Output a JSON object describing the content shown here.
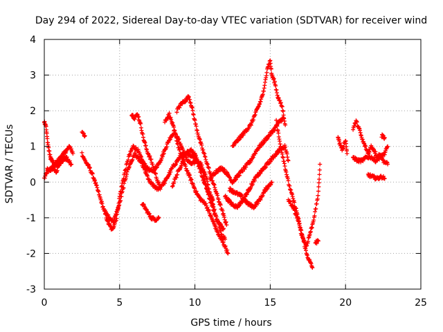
{
  "chart_data": {
    "type": "scatter",
    "title": "Day 294 of 2022, Sidereal Day-to-day VTEC variation (SDTVAR) for receiver wind",
    "xlabel": "GPS time / hours",
    "ylabel": "SDTVAR / TECUs",
    "xlim": [
      0,
      25
    ],
    "ylim": [
      -3,
      4
    ],
    "xticks": [
      0,
      5,
      10,
      15,
      20,
      25
    ],
    "yticks": [
      -3,
      -2,
      -1,
      0,
      1,
      2,
      3,
      4
    ],
    "grid": true,
    "marker": "+",
    "series": [
      {
        "name": "SDTVAR",
        "color": "#ff0000",
        "tracks": [
          [
            [
              0.0,
              0.1
            ],
            [
              0.2,
              0.3
            ],
            [
              0.5,
              0.4
            ],
            [
              0.8,
              0.5
            ],
            [
              1.0,
              0.6
            ],
            [
              1.3,
              0.7
            ],
            [
              1.6,
              0.6
            ],
            [
              1.8,
              0.5
            ]
          ],
          [
            [
              0.0,
              1.7
            ],
            [
              0.1,
              1.6
            ],
            [
              0.2,
              1.2
            ],
            [
              0.3,
              0.9
            ],
            [
              0.4,
              0.7
            ],
            [
              0.5,
              0.6
            ],
            [
              0.7,
              0.5
            ],
            [
              0.9,
              0.6
            ],
            [
              1.1,
              0.7
            ],
            [
              1.3,
              0.8
            ],
            [
              1.5,
              0.9
            ],
            [
              1.7,
              1.0
            ],
            [
              1.9,
              0.8
            ]
          ],
          [
            [
              0.2,
              0.4
            ],
            [
              0.4,
              0.3
            ],
            [
              0.6,
              0.4
            ],
            [
              0.8,
              0.3
            ],
            [
              1.0,
              0.5
            ],
            [
              1.2,
              0.6
            ],
            [
              1.5,
              0.7
            ]
          ],
          [
            [
              2.5,
              1.4
            ],
            [
              2.7,
              1.3
            ]
          ],
          [
            [
              2.5,
              0.8
            ],
            [
              2.7,
              0.6
            ],
            [
              3.0,
              0.4
            ],
            [
              3.3,
              0.1
            ],
            [
              3.6,
              -0.3
            ],
            [
              3.9,
              -0.7
            ],
            [
              4.2,
              -1.1
            ],
            [
              4.5,
              -1.35
            ],
            [
              4.8,
              -1.0
            ],
            [
              5.0,
              -0.4
            ],
            [
              5.3,
              0.2
            ],
            [
              5.6,
              0.7
            ],
            [
              5.9,
              1.0
            ],
            [
              6.2,
              0.9
            ],
            [
              6.5,
              0.6
            ],
            [
              6.8,
              0.4
            ],
            [
              7.1,
              0.3
            ],
            [
              7.4,
              0.4
            ],
            [
              7.7,
              0.6
            ],
            [
              8.0,
              0.9
            ],
            [
              8.3,
              1.2
            ],
            [
              8.6,
              1.4
            ],
            [
              8.9,
              1.2
            ],
            [
              9.2,
              0.9
            ],
            [
              9.5,
              0.6
            ],
            [
              9.8,
              0.5
            ],
            [
              10.1,
              0.6
            ],
            [
              10.4,
              0.5
            ],
            [
              10.7,
              0.2
            ],
            [
              11.0,
              -0.3
            ],
            [
              11.3,
              -0.8
            ],
            [
              11.6,
              -1.2
            ],
            [
              11.8,
              -1.5
            ],
            [
              12.0,
              -1.6
            ]
          ],
          [
            [
              4.0,
              -0.8
            ],
            [
              4.3,
              -1.0
            ],
            [
              4.6,
              -1.1
            ],
            [
              5.0,
              -0.6
            ],
            [
              5.5,
              0.3
            ],
            [
              6.0,
              0.8
            ],
            [
              6.5,
              0.5
            ],
            [
              7.0,
              0.0
            ],
            [
              7.5,
              -0.2
            ],
            [
              8.0,
              0.0
            ],
            [
              8.5,
              0.4
            ],
            [
              9.0,
              0.7
            ],
            [
              9.5,
              0.8
            ],
            [
              10.0,
              0.7
            ],
            [
              10.5,
              0.3
            ],
            [
              11.0,
              -0.5
            ],
            [
              11.5,
              -1.1
            ],
            [
              11.9,
              -1.3
            ]
          ],
          [
            [
              5.8,
              1.9
            ],
            [
              6.0,
              1.8
            ],
            [
              6.2,
              1.9
            ],
            [
              6.4,
              1.6
            ],
            [
              6.6,
              1.2
            ],
            [
              6.8,
              0.9
            ],
            [
              7.1,
              0.6
            ],
            [
              7.4,
              0.2
            ],
            [
              7.7,
              -0.2
            ]
          ],
          [
            [
              6.5,
              -0.6
            ],
            [
              6.8,
              -0.8
            ],
            [
              7.1,
              -1.0
            ],
            [
              7.4,
              -1.05
            ],
            [
              7.6,
              -1.0
            ]
          ],
          [
            [
              8.0,
              1.7
            ],
            [
              8.3,
              1.9
            ],
            [
              8.6,
              1.5
            ],
            [
              8.9,
              1.0
            ],
            [
              9.2,
              0.6
            ],
            [
              9.5,
              0.3
            ],
            [
              9.8,
              0.0
            ],
            [
              10.1,
              -0.3
            ],
            [
              10.4,
              -0.5
            ],
            [
              10.7,
              -0.6
            ],
            [
              11.0,
              -0.9
            ],
            [
              11.3,
              -1.2
            ],
            [
              11.6,
              -1.5
            ],
            [
              12.0,
              -1.8
            ],
            [
              12.2,
              -2.0
            ]
          ],
          [
            [
              8.8,
              2.0
            ],
            [
              9.1,
              2.2
            ],
            [
              9.4,
              2.3
            ],
            [
              9.6,
              2.4
            ],
            [
              9.8,
              2.1
            ],
            [
              10.0,
              1.7
            ],
            [
              10.3,
              1.2
            ],
            [
              10.6,
              0.8
            ],
            [
              10.9,
              0.4
            ],
            [
              11.2,
              0.0
            ],
            [
              11.5,
              -0.4
            ],
            [
              11.8,
              -0.8
            ],
            [
              12.1,
              -1.2
            ]
          ],
          [
            [
              8.5,
              -0.1
            ],
            [
              8.8,
              0.2
            ],
            [
              9.1,
              0.5
            ],
            [
              9.4,
              0.8
            ],
            [
              9.7,
              0.9
            ],
            [
              10.0,
              0.8
            ],
            [
              10.3,
              0.4
            ],
            [
              10.6,
              0.0
            ],
            [
              10.9,
              -0.3
            ],
            [
              11.2,
              -0.5
            ]
          ],
          [
            [
              11.0,
              0.1
            ],
            [
              11.4,
              0.3
            ],
            [
              11.8,
              0.4
            ],
            [
              12.2,
              0.2
            ],
            [
              12.5,
              0.0
            ],
            [
              12.9,
              0.2
            ],
            [
              13.3,
              0.4
            ],
            [
              13.7,
              0.6
            ],
            [
              14.1,
              0.9
            ],
            [
              14.5,
              1.1
            ],
            [
              14.9,
              1.3
            ],
            [
              15.3,
              1.5
            ],
            [
              15.6,
              1.7
            ],
            [
              15.9,
              1.8
            ]
          ],
          [
            [
              12.5,
              1.0
            ],
            [
              12.9,
              1.2
            ],
            [
              13.3,
              1.4
            ],
            [
              13.7,
              1.6
            ],
            [
              14.0,
              1.9
            ],
            [
              14.3,
              2.2
            ],
            [
              14.6,
              2.6
            ],
            [
              14.8,
              3.2
            ],
            [
              15.0,
              3.4
            ],
            [
              15.1,
              3.0
            ],
            [
              15.3,
              2.8
            ],
            [
              15.5,
              2.4
            ],
            [
              15.8,
              2.1
            ],
            [
              16.0,
              1.6
            ]
          ],
          [
            [
              12.0,
              -0.4
            ],
            [
              12.4,
              -0.6
            ],
            [
              12.8,
              -0.7
            ],
            [
              13.2,
              -0.5
            ],
            [
              13.6,
              -0.2
            ],
            [
              14.0,
              0.1
            ],
            [
              14.4,
              0.3
            ],
            [
              14.8,
              0.5
            ],
            [
              15.2,
              0.7
            ],
            [
              15.6,
              0.9
            ],
            [
              16.0,
              1.0
            ],
            [
              16.2,
              0.6
            ]
          ],
          [
            [
              12.3,
              -0.2
            ],
            [
              12.7,
              -0.3
            ],
            [
              13.1,
              -0.4
            ],
            [
              13.5,
              -0.6
            ],
            [
              13.9,
              -0.7
            ],
            [
              14.3,
              -0.5
            ],
            [
              14.7,
              -0.2
            ],
            [
              15.1,
              0.0
            ]
          ],
          [
            [
              15.4,
              1.7
            ],
            [
              15.6,
              1.2
            ],
            [
              15.8,
              0.8
            ],
            [
              16.0,
              0.4
            ],
            [
              16.2,
              0.0
            ],
            [
              16.4,
              -0.3
            ],
            [
              16.6,
              -0.6
            ],
            [
              16.8,
              -0.9
            ],
            [
              17.0,
              -1.3
            ],
            [
              17.2,
              -1.6
            ],
            [
              17.4,
              -2.0
            ],
            [
              17.6,
              -2.2
            ],
            [
              17.8,
              -2.4
            ]
          ],
          [
            [
              16.2,
              -0.5
            ],
            [
              16.5,
              -0.7
            ],
            [
              16.8,
              -1.0
            ],
            [
              17.1,
              -1.5
            ],
            [
              17.4,
              -1.8
            ],
            [
              17.6,
              -1.5
            ],
            [
              17.8,
              -1.2
            ],
            [
              18.0,
              -0.8
            ],
            [
              18.2,
              -0.3
            ],
            [
              18.3,
              0.5
            ]
          ],
          [
            [
              18.0,
              -1.7
            ],
            [
              18.2,
              -1.65
            ]
          ],
          [
            [
              19.5,
              1.3
            ],
            [
              19.6,
              1.1
            ],
            [
              19.8,
              0.9
            ],
            [
              20.0,
              1.2
            ],
            [
              20.1,
              0.8
            ]
          ],
          [
            [
              20.5,
              1.5
            ],
            [
              20.7,
              1.7
            ],
            [
              20.9,
              1.5
            ],
            [
              21.1,
              1.2
            ],
            [
              21.3,
              1.0
            ],
            [
              21.5,
              0.8
            ],
            [
              21.7,
              1.0
            ],
            [
              21.9,
              0.9
            ],
            [
              22.1,
              0.7
            ],
            [
              22.3,
              0.8
            ],
            [
              22.5,
              0.6
            ],
            [
              22.8,
              0.5
            ]
          ],
          [
            [
              20.5,
              0.7
            ],
            [
              20.8,
              0.6
            ],
            [
              21.1,
              0.6
            ],
            [
              21.4,
              0.7
            ],
            [
              21.7,
              0.7
            ],
            [
              22.0,
              0.6
            ],
            [
              22.3,
              0.7
            ],
            [
              22.6,
              0.8
            ],
            [
              22.8,
              1.0
            ]
          ],
          [
            [
              21.5,
              0.2
            ],
            [
              21.8,
              0.15
            ],
            [
              22.1,
              0.1
            ],
            [
              22.4,
              0.15
            ],
            [
              22.6,
              0.1
            ]
          ],
          [
            [
              22.4,
              1.3
            ],
            [
              22.6,
              1.25
            ]
          ]
        ]
      }
    ]
  }
}
